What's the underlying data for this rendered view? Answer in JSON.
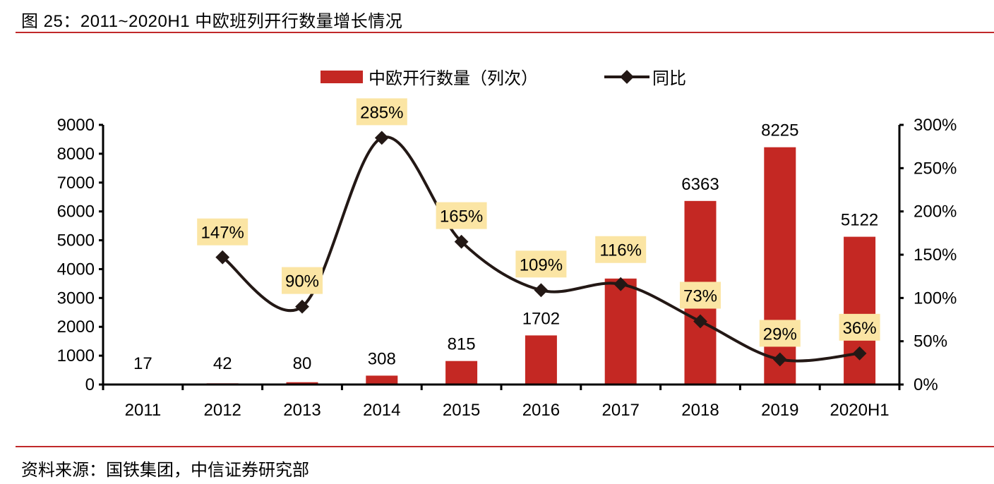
{
  "header": {
    "title": "图 25：2011~2020H1 中欧班列开行数量增长情况"
  },
  "footer": {
    "source": "资料来源：国铁集团，中信证券研究部"
  },
  "colors": {
    "bar": "#c42823",
    "line": "#231815",
    "label_bg": "#fbe5a4",
    "rule": "#c0282a"
  },
  "chart_data": {
    "type": "bar+line",
    "title": "图 25：2011~2020H1 中欧班列开行数量增长情况",
    "categories": [
      "2011",
      "2012",
      "2013",
      "2014",
      "2015",
      "2016",
      "2017",
      "2018",
      "2019",
      "2020H1"
    ],
    "series": [
      {
        "name": "中欧开行数量（列次）",
        "type": "bar",
        "axis": "left",
        "values": [
          17,
          42,
          80,
          308,
          815,
          1702,
          3673,
          6363,
          8225,
          5122
        ],
        "labels": [
          "17",
          "42",
          "80",
          "308",
          "815",
          "1702",
          "",
          "6363",
          "8225",
          "5122"
        ]
      },
      {
        "name": "同比",
        "type": "line",
        "axis": "right",
        "smooth": true,
        "marker": "diamond",
        "values": [
          null,
          147,
          90,
          285,
          165,
          109,
          116,
          73,
          29,
          36
        ],
        "labels": [
          "",
          "147%",
          "90%",
          "285%",
          "165%",
          "109%",
          "116%",
          "73%",
          "29%",
          "36%"
        ]
      }
    ],
    "y_left": {
      "min": 0,
      "max": 9000,
      "ticks": [
        "0",
        "1000",
        "2000",
        "3000",
        "4000",
        "5000",
        "6000",
        "7000",
        "8000",
        "9000"
      ]
    },
    "y_right": {
      "min": 0,
      "max": 300,
      "ticks": [
        "0%",
        "50%",
        "100%",
        "150%",
        "200%",
        "250%",
        "300%"
      ]
    },
    "legend": {
      "position": "top-center",
      "entries": [
        "中欧开行数量（列次）",
        "同比"
      ]
    },
    "grid": false
  }
}
